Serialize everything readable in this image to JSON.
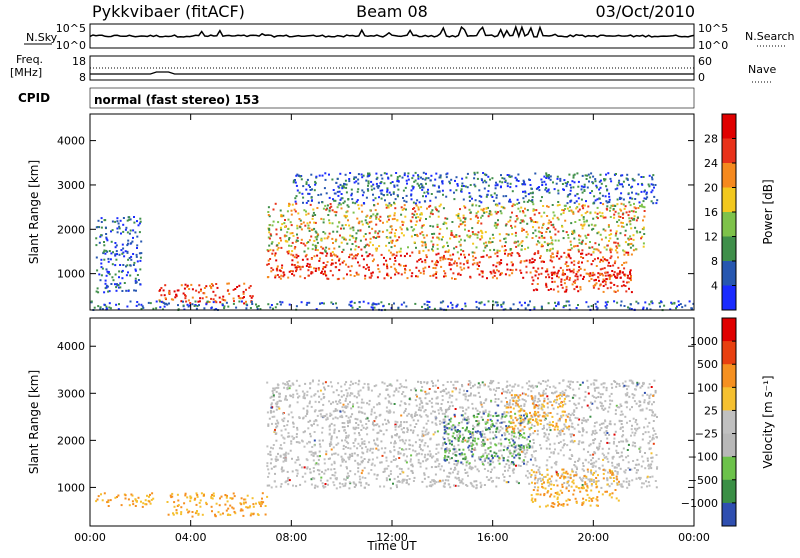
{
  "header": {
    "station": "Pykkvibaer (fitACF)",
    "beam": "Beam 08",
    "date": "03/Oct/2010"
  },
  "top_panels": {
    "nsky_label": "N.Sky",
    "nsky_ticks": [
      "10^5",
      "10^0"
    ],
    "nsearch_label": "N.Search",
    "nsearch_ticks": [
      "10^5",
      "10^0"
    ],
    "freq_label": "Freq.",
    "freq_unit": "[MHz]",
    "freq_ticks": [
      "18",
      "8"
    ],
    "nave_label": "Nave",
    "nave_ticks": [
      "60",
      "0"
    ],
    "cpid_label": "CPID",
    "cpid_value": "normal (fast stereo) 153"
  },
  "chart_data": [
    {
      "type": "heatmap",
      "name": "power-panel",
      "xlabel": "",
      "ylabel": "Slant Range [km]",
      "xlim": [
        0,
        24
      ],
      "ylim": [
        180,
        4600
      ],
      "yticks": [
        "1000",
        "2000",
        "3000",
        "4000"
      ],
      "colorbar_label": "Power [dB]",
      "colorbar_ticks": [
        "4",
        "8",
        "12",
        "16",
        "20",
        "24",
        "28"
      ],
      "colorbar_colors": [
        "#1a2bff",
        "#2757b0",
        "#3f8f4a",
        "#7ec24a",
        "#f2c81e",
        "#f5891e",
        "#e8321a",
        "#e00000"
      ],
      "echo_regions": [
        {
          "t0": 2.7,
          "t1": 6.5,
          "r0": 350,
          "r1": 800,
          "level": "high"
        },
        {
          "t0": 7.0,
          "t1": 21.5,
          "r0": 900,
          "r1": 1500,
          "level": "high"
        },
        {
          "t0": 7.0,
          "t1": 22.0,
          "r0": 1500,
          "r1": 2600,
          "level": "medium"
        },
        {
          "t0": 8.0,
          "t1": 22.5,
          "r0": 2600,
          "r1": 3300,
          "level": "low"
        },
        {
          "t0": 17.5,
          "t1": 21.5,
          "r0": 600,
          "r1": 1100,
          "level": "high"
        },
        {
          "t0": 0.2,
          "t1": 2.0,
          "r0": 600,
          "r1": 2300,
          "level": "low"
        },
        {
          "t0": 0.0,
          "t1": 24.0,
          "r0": 200,
          "r1": 400,
          "level": "low"
        }
      ]
    },
    {
      "type": "heatmap",
      "name": "velocity-panel",
      "xlabel": "Time UT",
      "ylabel": "Slant Range [km]",
      "xlim": [
        0,
        24
      ],
      "ylim": [
        180,
        4600
      ],
      "xticks": [
        "00:00",
        "04:00",
        "08:00",
        "12:00",
        "16:00",
        "20:00",
        "00:00"
      ],
      "yticks": [
        "1000",
        "2000",
        "3000",
        "4000"
      ],
      "colorbar_label": "Velocity [m s⁻¹]",
      "colorbar_ticks": [
        "1000",
        "500",
        "100",
        "25",
        "−25",
        "−100",
        "−500",
        "−1000"
      ],
      "colorbar_colors": [
        "#2f4fb0",
        "#3a8f45",
        "#6cc24a",
        "#b8b8b8",
        "#c0c0c0",
        "#f5c030",
        "#f59020",
        "#e84010",
        "#e00000"
      ],
      "echo_regions": [
        {
          "t0": 0.2,
          "t1": 2.5,
          "r0": 600,
          "r1": 900,
          "level": "negative"
        },
        {
          "t0": 3.0,
          "t1": 7.0,
          "r0": 400,
          "r1": 900,
          "level": "negative"
        },
        {
          "t0": 7.0,
          "t1": 22.5,
          "r0": 1000,
          "r1": 3300,
          "level": "near-zero"
        },
        {
          "t0": 14.0,
          "t1": 17.5,
          "r0": 1500,
          "r1": 2600,
          "level": "positive"
        },
        {
          "t0": 16.5,
          "t1": 19.0,
          "r0": 2200,
          "r1": 3000,
          "level": "negative"
        },
        {
          "t0": 17.5,
          "t1": 21.0,
          "r0": 600,
          "r1": 1400,
          "level": "negative"
        }
      ]
    }
  ]
}
